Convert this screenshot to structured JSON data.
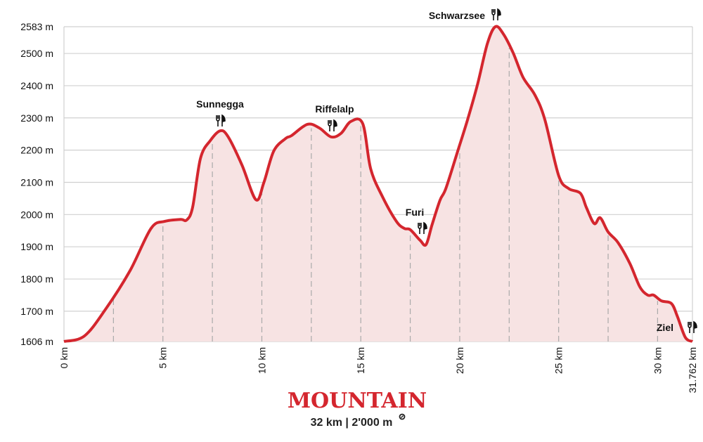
{
  "chart_data": {
    "type": "area",
    "title": "MOUNTAIN",
    "subtitle": "32 km | 2'000 m",
    "subtitle_icon": "ascent-icon",
    "xlim": [
      0,
      31.762
    ],
    "ylim": [
      1606,
      2583
    ],
    "y_ticks": [
      1606,
      1700,
      1800,
      1900,
      2000,
      2100,
      2200,
      2300,
      2400,
      2500,
      2583
    ],
    "y_tick_labels": [
      "1606 m",
      "1700 m",
      "1800 m",
      "1900 m",
      "2000 m",
      "2100 m",
      "2200 m",
      "2300 m",
      "2400 m",
      "2500 m",
      "2583 m"
    ],
    "x_ticks": [
      0,
      5,
      10,
      15,
      20,
      25,
      30,
      31.762
    ],
    "x_tick_labels": [
      "0 km",
      "5 km",
      "10 km",
      "15 km",
      "20 km",
      "25 km",
      "30 km",
      "31.762 km"
    ],
    "dashed_markers_km": [
      2.5,
      5,
      7.5,
      10,
      12.5,
      15,
      17.5,
      20,
      22.5,
      25,
      27.5,
      30
    ],
    "grid": true,
    "colors": {
      "line": "#d4262e",
      "fill": "#f7e3e3",
      "title": "#d4262e",
      "grid": "#d0d0d0"
    },
    "x": [
      0,
      1.03,
      2.1,
      3.34,
      4.4,
      5.1,
      5.9,
      6.2,
      6.5,
      6.9,
      7.4,
      7.9,
      8.3,
      9.0,
      9.7,
      10.1,
      10.6,
      11.2,
      11.5,
      12.3,
      12.9,
      13.5,
      14.0,
      14.5,
      15.1,
      15.5,
      16.1,
      16.8,
      17.2,
      17.5,
      18.0,
      18.3,
      18.6,
      19.0,
      19.3,
      19.9,
      20.4,
      20.9,
      21.4,
      21.8,
      22.2,
      22.7,
      23.2,
      23.8,
      24.3,
      25.0,
      25.5,
      26.1,
      26.4,
      26.8,
      27.1,
      27.5,
      28.0,
      28.6,
      29.1,
      29.5,
      29.8,
      30.2,
      30.7,
      31.0,
      31.4,
      31.762
    ],
    "y": [
      1606,
      1623,
      1706,
      1826,
      1957,
      1979,
      1985,
      1983,
      2022,
      2175,
      2230,
      2260,
      2241,
      2153,
      2046,
      2099,
      2197,
      2236,
      2245,
      2280,
      2269,
      2241,
      2252,
      2289,
      2282,
      2142,
      2055,
      1979,
      1957,
      1953,
      1920,
      1907,
      1968,
      2044,
      2081,
      2197,
      2295,
      2404,
      2531,
      2583,
      2561,
      2502,
      2426,
      2371,
      2295,
      2121,
      2081,
      2066,
      2022,
      1972,
      1990,
      1946,
      1913,
      1848,
      1776,
      1750,
      1750,
      1732,
      1724,
      1684,
      1619,
      1606
    ],
    "annotations": [
      {
        "label": "Sunnegga",
        "km": 7.9,
        "elev": 2260,
        "icon": "restaurant-icon"
      },
      {
        "label": "Riffelalp",
        "km": 13.5,
        "elev": 2241,
        "icon": "restaurant-icon"
      },
      {
        "label": "Furi",
        "km": 18.0,
        "elev": 1920,
        "icon": "restaurant-icon"
      },
      {
        "label": "Schwarzsee",
        "km": 21.8,
        "elev": 2583,
        "icon": "restaurant-icon"
      },
      {
        "label": "Ziel",
        "km": 31.762,
        "elev": 1606,
        "icon": "restaurant-icon"
      }
    ]
  }
}
